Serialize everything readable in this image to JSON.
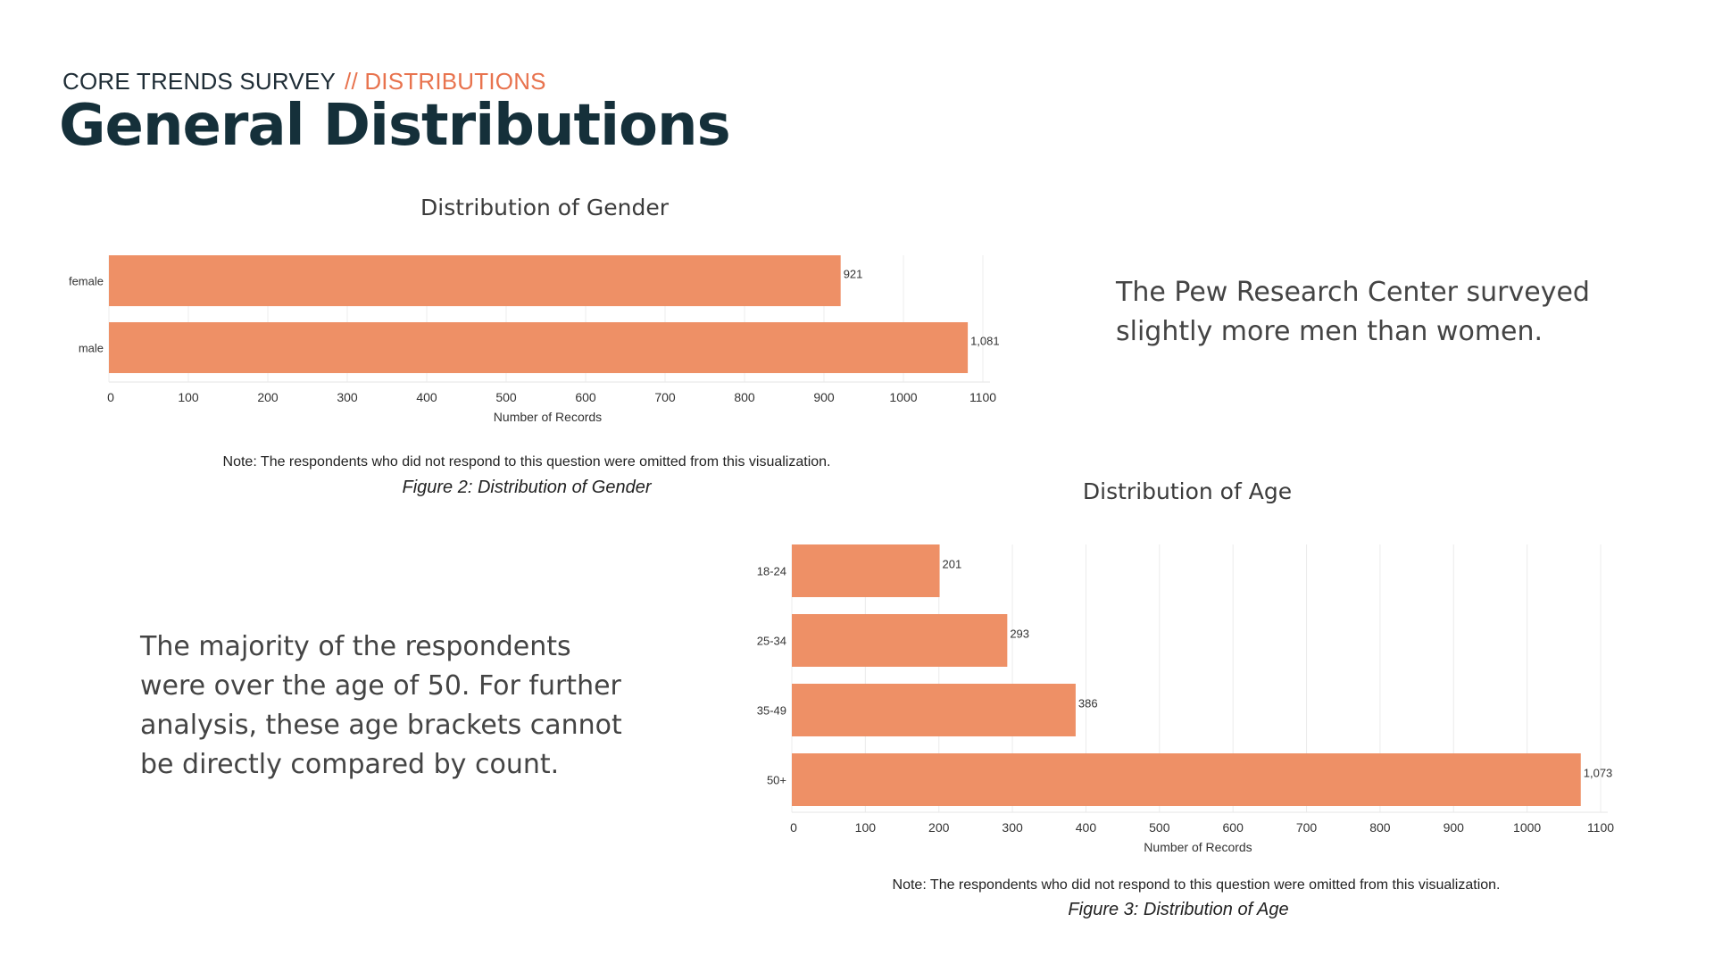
{
  "header": {
    "kicker": "CORE TRENDS SURVEY",
    "kicker_accent": "// DISTRIBUTIONS",
    "title": "General Distributions"
  },
  "colors": {
    "bar": "#ee9066",
    "accent": "#e8734e",
    "title": "#15303a",
    "grid": "#ececec"
  },
  "chart_data": [
    {
      "type": "bar",
      "orientation": "horizontal",
      "title": "Distribution of Gender",
      "categories": [
        "female",
        "male"
      ],
      "values": [
        921,
        1081
      ],
      "value_labels": [
        "921",
        "1,081"
      ],
      "xlabel": "Number of Records",
      "ylabel": "",
      "xlim": [
        0,
        1100
      ],
      "xticks": [
        0,
        100,
        200,
        300,
        400,
        500,
        600,
        700,
        800,
        900,
        1000,
        1100
      ],
      "grid": true
    },
    {
      "type": "bar",
      "orientation": "horizontal",
      "title": "Distribution of Age",
      "categories": [
        "18-24",
        "25-34",
        "35-49",
        "50+"
      ],
      "values": [
        201,
        293,
        386,
        1073
      ],
      "value_labels": [
        "201",
        "293",
        "386",
        "1,073"
      ],
      "xlabel": "Number of Records",
      "ylabel": "",
      "xlim": [
        0,
        1100
      ],
      "xticks": [
        0,
        100,
        200,
        300,
        400,
        500,
        600,
        700,
        800,
        900,
        1000,
        1100
      ],
      "grid": true
    }
  ],
  "gender_chart": {
    "note": "Note: The respondents who did not respond to this question were omitted from this visualization.",
    "caption": "Figure 2: Distribution of Gender"
  },
  "age_chart": {
    "note": "Note: The respondents who did not respond to this question were omitted from this visualization.",
    "caption": "Figure 3: Distribution of Age"
  },
  "blurbs": {
    "gender": [
      "The Pew Research Center surveyed",
      "slightly more men than women."
    ],
    "age": [
      "The majority of the respondents",
      "were over the age of 50. For further",
      "analysis, these age brackets cannot",
      "be directly compared by count."
    ]
  }
}
